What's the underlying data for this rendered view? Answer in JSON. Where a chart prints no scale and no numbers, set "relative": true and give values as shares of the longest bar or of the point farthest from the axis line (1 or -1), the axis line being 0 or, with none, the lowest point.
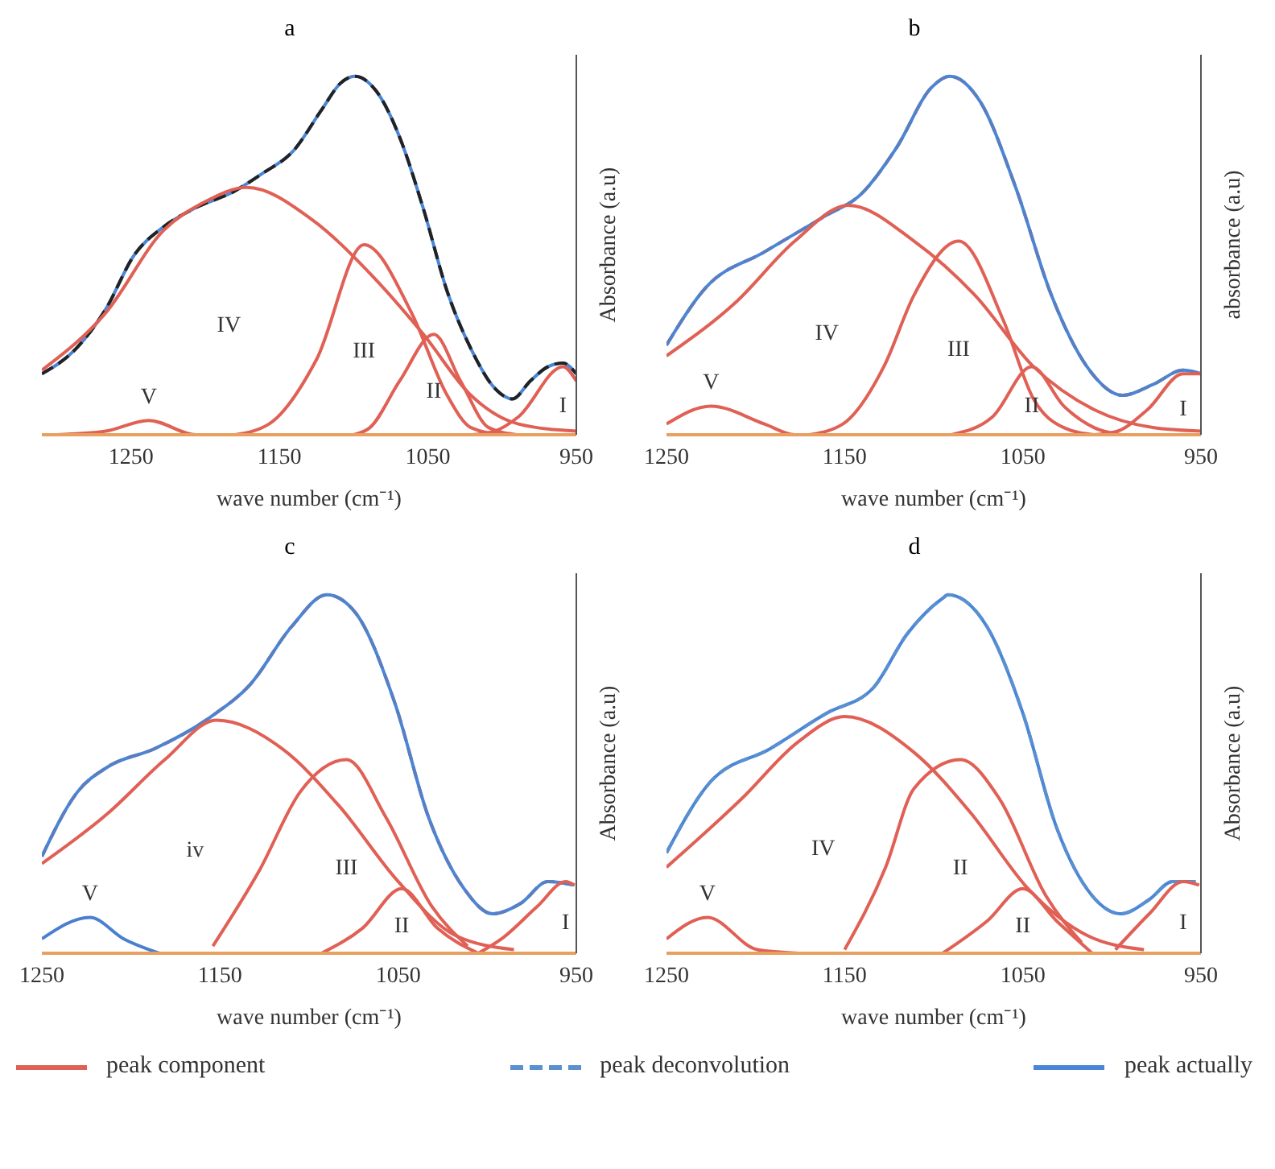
{
  "chart_data": [
    {
      "type": "line",
      "title": "a",
      "xlabel": "wave number (cm⁻¹)",
      "ylabel": "Absorbance (a.u)",
      "relative": true,
      "xlim": [
        1310,
        950
      ],
      "xticks": [
        1250,
        1150,
        1050,
        950
      ],
      "series": [
        {
          "type": "line",
          "color": "#4a86d8",
          "x": [
            1310,
            1287,
            1267,
            1248,
            1228,
            1208,
            1180,
            1161,
            1141,
            1121,
            1109,
            1099,
            1085,
            1069,
            1053,
            1037,
            1021,
            1005,
            993,
            981,
            969,
            959,
            950
          ],
          "values": [
            0.17,
            0.24,
            0.35,
            0.5,
            0.58,
            0.63,
            0.68,
            0.73,
            0.79,
            0.91,
            0.98,
            1.0,
            0.96,
            0.83,
            0.63,
            0.4,
            0.24,
            0.13,
            0.1,
            0.15,
            0.19,
            0.2,
            0.17
          ]
        },
        {
          "type": "line",
          "color": "#222222",
          "line_style": "dashed",
          "x": [
            1310,
            1287,
            1267,
            1248,
            1228,
            1208,
            1180,
            1161,
            1141,
            1121,
            1109,
            1099,
            1085,
            1069,
            1053,
            1037,
            1021,
            1005,
            993,
            981,
            969,
            959,
            950
          ],
          "values": [
            0.17,
            0.24,
            0.35,
            0.5,
            0.58,
            0.63,
            0.68,
            0.73,
            0.79,
            0.91,
            0.98,
            1.0,
            0.96,
            0.83,
            0.63,
            0.4,
            0.24,
            0.13,
            0.1,
            0.15,
            0.19,
            0.2,
            0.17
          ]
        },
        {
          "type": "line",
          "color": "#e06055",
          "x": [
            1310,
            1267,
            1228,
            1200,
            1172,
            1128,
            1089,
            1053,
            1021,
            989,
            950
          ],
          "values": [
            0.18,
            0.34,
            0.57,
            0.65,
            0.69,
            0.6,
            0.45,
            0.28,
            0.11,
            0.03,
            0.01
          ]
        },
        {
          "type": "line",
          "color": "#e06055",
          "x": [
            1180,
            1157,
            1125,
            1093,
            1061,
            1037,
            1021,
            1000
          ],
          "values": [
            0,
            0.03,
            0.21,
            0.53,
            0.34,
            0.11,
            0.02,
            0
          ]
        },
        {
          "type": "line",
          "color": "#e06055",
          "x": [
            1100,
            1089,
            1069,
            1046,
            1028,
            1009,
            990
          ],
          "values": [
            0,
            0.02,
            0.15,
            0.28,
            0.15,
            0.02,
            0
          ]
        },
        {
          "type": "line",
          "color": "#e06055",
          "x": [
            1020,
            1005,
            989,
            959,
            950
          ],
          "values": [
            0,
            0.01,
            0.05,
            0.19,
            0.15
          ]
        },
        {
          "type": "line",
          "color": "#e06055",
          "x": [
            1300,
            1267,
            1238,
            1206,
            1180
          ],
          "values": [
            0,
            0.01,
            0.04,
            0,
            0
          ]
        }
      ],
      "annotations": [
        "IV",
        "III",
        "II",
        "I",
        "V"
      ]
    },
    {
      "type": "line",
      "title": "b",
      "xlabel": "wave number (cm⁻¹)",
      "ylabel": "absorbance (a.u)",
      "relative": true,
      "xlim": [
        1250,
        950
      ],
      "xticks": [
        1250,
        1150,
        1050,
        950
      ],
      "series": [
        {
          "type": "line",
          "color": "#4a86d8",
          "x": [
            1250,
            1228,
            1195,
            1161,
            1141,
            1121,
            1101,
            1091,
            1074,
            1054,
            1034,
            1014,
            994,
            977,
            960,
            950
          ],
          "values": [
            0.25,
            0.41,
            0.51,
            0.61,
            0.67,
            0.8,
            0.97,
            1.0,
            0.93,
            0.69,
            0.39,
            0.19,
            0.11,
            0.14,
            0.18,
            0.17
          ]
        },
        {
          "type": "line",
          "color": "#5a7fc0",
          "line_style": "dashed",
          "x": [
            1250,
            1228,
            1195,
            1161,
            1141,
            1121,
            1101,
            1091,
            1074,
            1054,
            1034,
            1014,
            994,
            977,
            960,
            950
          ],
          "values": [
            0.25,
            0.41,
            0.51,
            0.61,
            0.67,
            0.8,
            0.97,
            1.0,
            0.93,
            0.69,
            0.39,
            0.19,
            0.11,
            0.14,
            0.18,
            0.17
          ]
        },
        {
          "type": "line",
          "color": "#e06055",
          "x": [
            1250,
            1211,
            1178,
            1148,
            1111,
            1077,
            1044,
            1010,
            977,
            950
          ],
          "values": [
            0.22,
            0.37,
            0.54,
            0.64,
            0.54,
            0.39,
            0.19,
            0.07,
            0.02,
            0.01
          ]
        },
        {
          "type": "line",
          "color": "#e06055",
          "x": [
            1170,
            1151,
            1128,
            1111,
            1086,
            1061,
            1044,
            1027,
            1010
          ],
          "values": [
            0,
            0.03,
            0.19,
            0.39,
            0.54,
            0.32,
            0.1,
            0.02,
            0
          ]
        },
        {
          "type": "line",
          "color": "#e06055",
          "x": [
            1090,
            1067,
            1045,
            1027,
            1010,
            995
          ],
          "values": [
            0,
            0.05,
            0.19,
            0.08,
            0.02,
            0
          ]
        },
        {
          "type": "line",
          "color": "#e06055",
          "x": [
            1010,
            997,
            980,
            960,
            950
          ],
          "values": [
            0,
            0.01,
            0.07,
            0.17,
            0.17
          ]
        },
        {
          "type": "line",
          "color": "#e06055",
          "x": [
            1250,
            1225,
            1195,
            1178,
            1160
          ],
          "values": [
            0.03,
            0.08,
            0.03,
            0,
            0
          ]
        }
      ],
      "annotations": [
        "IV",
        "III",
        "II",
        "I",
        "V"
      ]
    },
    {
      "type": "line",
      "title": "c",
      "xlabel": "wave number (cm⁻¹)",
      "ylabel": "Absorbance (a.u)",
      "relative": true,
      "xlim": [
        1250,
        950
      ],
      "xticks": [
        1250,
        1150,
        1050,
        950
      ],
      "series": [
        {
          "type": "line",
          "color": "#4a86d8",
          "x": [
            1250,
            1230,
            1213,
            1187,
            1155,
            1133,
            1110,
            1090,
            1074,
            1052,
            1033,
            1013,
            997,
            981,
            966,
            951
          ],
          "values": [
            0.27,
            0.45,
            0.52,
            0.57,
            0.66,
            0.75,
            0.91,
            1.0,
            0.95,
            0.7,
            0.38,
            0.18,
            0.11,
            0.14,
            0.2,
            0.19
          ]
        },
        {
          "type": "line",
          "color": "#5a7fc0",
          "line_style": "dashed",
          "x": [
            1250,
            1230,
            1213,
            1187,
            1155,
            1133,
            1110,
            1090,
            1074,
            1052,
            1033,
            1013,
            997,
            981,
            966,
            951
          ],
          "values": [
            0.27,
            0.45,
            0.52,
            0.57,
            0.66,
            0.75,
            0.91,
            1.0,
            0.95,
            0.7,
            0.38,
            0.18,
            0.11,
            0.14,
            0.2,
            0.19
          ]
        },
        {
          "type": "line",
          "color": "#e06055",
          "x": [
            1250,
            1213,
            1181,
            1152,
            1115,
            1083,
            1050,
            1018,
            985
          ],
          "values": [
            0.25,
            0.39,
            0.54,
            0.65,
            0.57,
            0.41,
            0.2,
            0.05,
            0.01
          ]
        },
        {
          "type": "line",
          "color": "#e06055",
          "x": [
            1154,
            1128,
            1105,
            1079,
            1057,
            1031,
            1011
          ],
          "values": [
            0.02,
            0.23,
            0.45,
            0.54,
            0.38,
            0.13,
            0.02
          ]
        },
        {
          "type": "line",
          "color": "#e06055",
          "x": [
            1093,
            1070,
            1048,
            1028,
            1005
          ],
          "values": [
            0,
            0.07,
            0.18,
            0.07,
            0
          ]
        },
        {
          "type": "line",
          "color": "#e06055",
          "x": [
            1005,
            992,
            972,
            956,
            951
          ],
          "values": [
            0,
            0.04,
            0.13,
            0.2,
            0.19
          ]
        },
        {
          "type": "line",
          "color": "#4a7fd0",
          "x": [
            1250,
            1223,
            1204,
            1184
          ],
          "values": [
            0.04,
            0.1,
            0.04,
            0
          ]
        }
      ],
      "annotations": [
        "iv",
        "III",
        "II",
        "I",
        "V"
      ]
    },
    {
      "type": "line",
      "title": "d",
      "xlabel": "wave number (cm⁻¹)",
      "ylabel": "Absorbance (a.u)",
      "relative": true,
      "xlim": [
        1250,
        950
      ],
      "xticks": [
        1250,
        1150,
        1050,
        950
      ],
      "legend": "bottom",
      "series": [
        {
          "type": "line",
          "name": "peak actually",
          "color": "#4a86d8",
          "x": [
            1250,
            1225,
            1192,
            1160,
            1134,
            1115,
            1095,
            1092,
            1070,
            1050,
            1031,
            1011,
            995,
            979,
            966,
            953
          ],
          "values": [
            0.28,
            0.48,
            0.57,
            0.67,
            0.74,
            0.89,
            0.99,
            1.0,
            0.91,
            0.67,
            0.35,
            0.16,
            0.11,
            0.15,
            0.2,
            0.2
          ]
        },
        {
          "type": "line",
          "name": "peak deconvolution",
          "color": "#5a8fd0",
          "line_style": "dashed",
          "x": [
            1250,
            1225,
            1192,
            1160,
            1134,
            1115,
            1095,
            1092,
            1070,
            1050,
            1031,
            1011,
            995,
            979,
            966,
            953
          ],
          "values": [
            0.28,
            0.48,
            0.57,
            0.67,
            0.74,
            0.89,
            0.99,
            1.0,
            0.91,
            0.67,
            0.35,
            0.16,
            0.11,
            0.15,
            0.2,
            0.2
          ]
        },
        {
          "type": "line",
          "name": "peak component",
          "color": "#e06055",
          "x": [
            1250,
            1208,
            1176,
            1150,
            1111,
            1079,
            1047,
            1014,
            982
          ],
          "values": [
            0.24,
            0.43,
            0.59,
            0.66,
            0.56,
            0.39,
            0.18,
            0.05,
            0.01
          ]
        },
        {
          "type": "line",
          "color": "#e06055",
          "x": [
            1150,
            1127,
            1111,
            1085,
            1063,
            1037,
            1017
          ],
          "values": [
            0.01,
            0.24,
            0.46,
            0.54,
            0.43,
            0.16,
            0.03
          ]
        },
        {
          "type": "line",
          "color": "#e06055",
          "x": [
            1095,
            1070,
            1050,
            1031,
            1011
          ],
          "values": [
            0,
            0.09,
            0.18,
            0.09,
            0
          ]
        },
        {
          "type": "line",
          "color": "#e06055",
          "x": [
            998,
            979,
            960,
            951
          ],
          "values": [
            0.01,
            0.11,
            0.2,
            0.19
          ]
        },
        {
          "type": "line",
          "color": "#e06055",
          "x": [
            1250,
            1227,
            1199,
            1176
          ],
          "values": [
            0.04,
            0.1,
            0.01,
            0
          ]
        }
      ],
      "annotations": [
        "IV",
        "II",
        "II",
        "I",
        "V"
      ]
    }
  ]
}
